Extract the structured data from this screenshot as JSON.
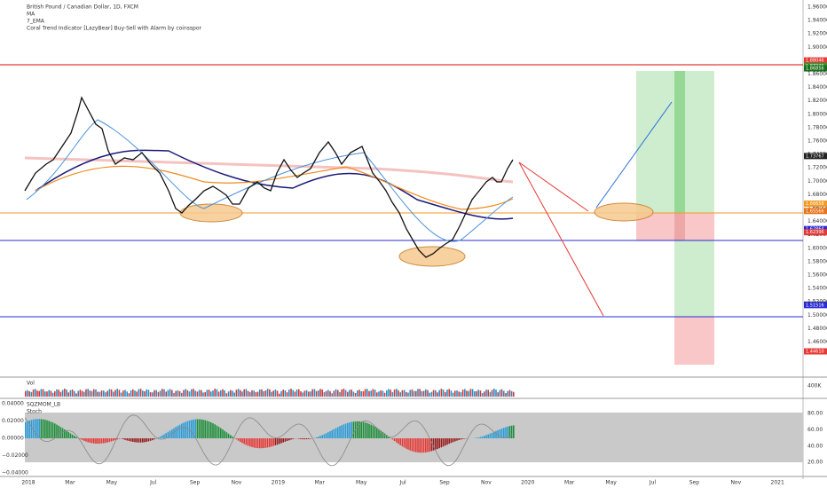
{
  "header": {
    "title": "British Pound / Canadian Dollar, 1D, FXCM",
    "indicators": [
      "MA",
      "7_EMA",
      "Coral Trend Indicator [LazyBear] Buy-Sell with Alarm by coinsspor"
    ]
  },
  "price_axis": {
    "labels": [
      "1.96000",
      "1.94000",
      "1.92000",
      "1.90000",
      "1.88000",
      "1.86000",
      "1.84000",
      "1.82000",
      "1.80000",
      "1.78000",
      "1.76000",
      "1.74000",
      "1.72000",
      "1.70000",
      "1.68000",
      "1.66000",
      "1.64000",
      "1.62000",
      "1.60000",
      "1.58000",
      "1.56000",
      "1.54000",
      "1.52000",
      "1.50000",
      "1.48000",
      "1.46000"
    ]
  },
  "price_tags": [
    {
      "label": "1.88046",
      "color": "#e53935"
    },
    {
      "label": "1.87225",
      "color": "#2e9c2e"
    },
    {
      "label": "1.86856",
      "color": "#1b6e1b"
    },
    {
      "label": "1.73767",
      "color": "#222222"
    },
    {
      "label": "1.66658",
      "color": "#f59a23"
    },
    {
      "label": "1.65566",
      "color": "#e8731a"
    },
    {
      "label": "1.62864",
      "color": "#2b2bd6"
    },
    {
      "label": "1.62396",
      "color": "#e53935"
    },
    {
      "label": "1.51582",
      "color": "#222222"
    },
    {
      "label": "1.51516",
      "color": "#2b2bd6"
    },
    {
      "label": "1.44610",
      "color": "#e53935"
    }
  ],
  "time_axis": {
    "labels": [
      "2018",
      "Mar",
      "May",
      "Jul",
      "Sep",
      "Nov",
      "2019",
      "Mar",
      "May",
      "Jul",
      "Sep",
      "Nov",
      "2020",
      "Mar",
      "May",
      "Jul",
      "Sep",
      "Nov",
      "2021"
    ]
  },
  "volume": {
    "label": "Vol",
    "axis_label": "400K"
  },
  "oscillator": {
    "labels": [
      "SQZMOM_LB",
      "Stoch"
    ],
    "left_axis": [
      "0.04000",
      "0.02000",
      "0.00000",
      "−0.02000",
      "−0.04000"
    ],
    "right_axis": [
      "80.00",
      "60.00",
      "40.00",
      "20.00"
    ]
  }
}
